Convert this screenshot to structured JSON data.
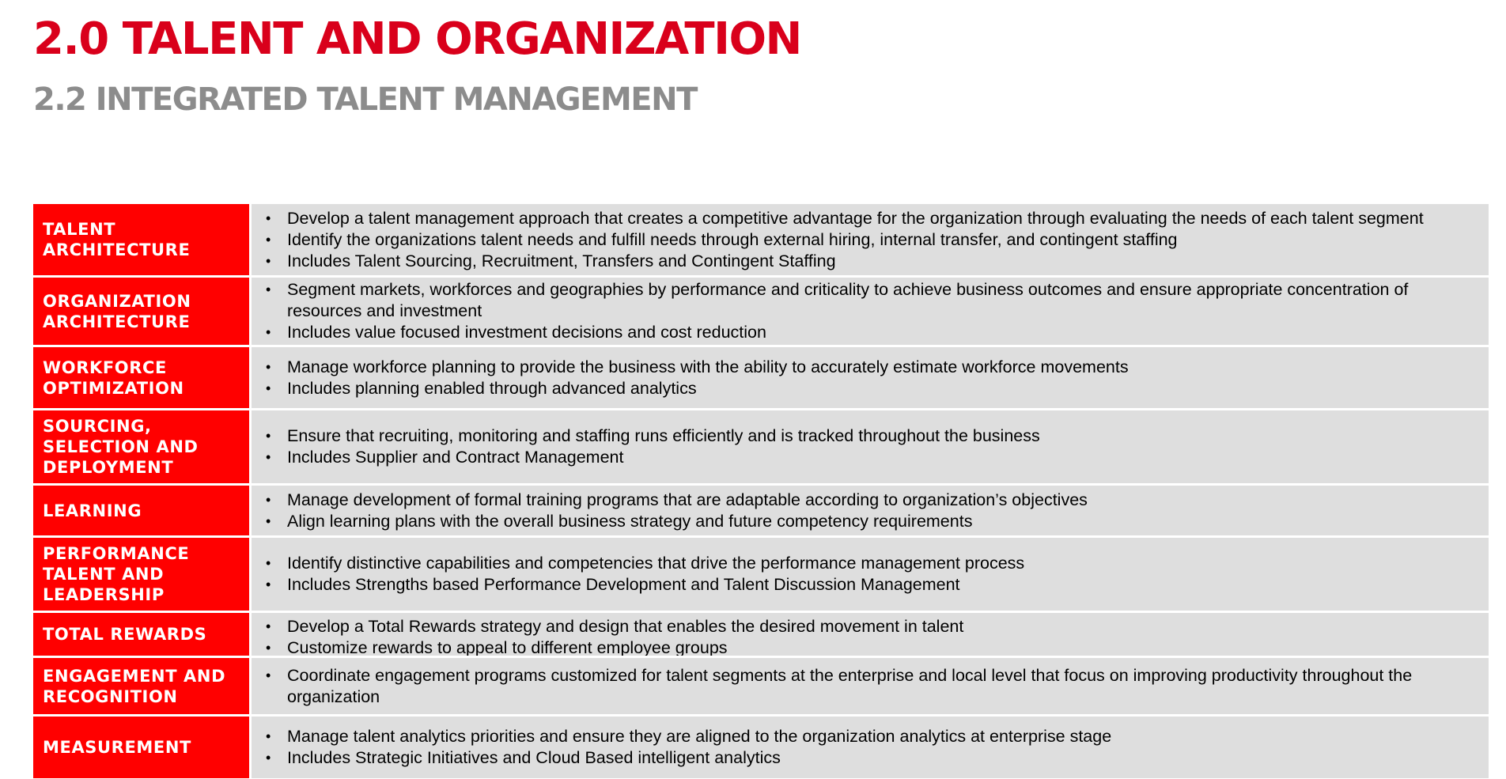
{
  "header": {
    "title": "2.0 TALENT AND ORGANIZATION",
    "subtitle": "2.2 INTEGRATED TALENT MANAGEMENT"
  },
  "table": {
    "bullet_glyph": "•",
    "label_color": "#ff0000",
    "content_color": "#dedede",
    "rows": [
      {
        "label": "TALENT ARCHITECTURE",
        "bullets": [
          "Develop a talent management approach that creates a competitive advantage for the organization through evaluating the needs of each talent segment",
          "Identify the organizations talent needs and fulfill needs through external hiring, internal transfer, and contingent staffing",
          "Includes Talent Sourcing, Recruitment, Transfers and Contingent Staffing"
        ]
      },
      {
        "label": "ORGANIZATION ARCHITECTURE",
        "bullets": [
          "Segment markets, workforces and geographies by performance and criticality to achieve business outcomes and ensure appropriate concentration of resources and investment",
          "Includes value focused investment decisions and cost reduction"
        ]
      },
      {
        "label": "WORKFORCE OPTIMIZATION",
        "bullets": [
          "Manage workforce planning to provide the business with the ability to accurately estimate workforce movements",
          "Includes planning enabled through advanced analytics"
        ]
      },
      {
        "label": "SOURCING, SELECTION AND DEPLOYMENT",
        "bullets": [
          "Ensure that recruiting, monitoring and staffing runs efficiently and is tracked throughout the business",
          "Includes Supplier and Contract Management"
        ]
      },
      {
        "label": "LEARNING",
        "bullets": [
          "Manage development of formal training programs that are adaptable according to organization’s objectives",
          "Align learning plans with the overall business strategy and future competency requirements"
        ]
      },
      {
        "label": "PERFORMANCE TALENT AND LEADERSHIP",
        "bullets": [
          "Identify distinctive capabilities and competencies that drive the performance management process",
          "Includes Strengths based Performance Development and Talent Discussion Management"
        ]
      },
      {
        "label": "TOTAL REWARDS",
        "bullets": [
          "Develop a Total Rewards strategy and design that enables the desired movement in talent",
          "Customize rewards to appeal to different employee groups"
        ]
      },
      {
        "label": "ENGAGEMENT AND RECOGNITION",
        "bullets": [
          "Coordinate engagement programs customized for talent segments at the enterprise and local level that focus on improving productivity throughout the organization"
        ]
      },
      {
        "label": "MEASUREMENT",
        "bullets": [
          "Manage talent analytics priorities and ensure they are aligned to the organization analytics at enterprise stage",
          "Includes Strategic Initiatives and Cloud Based intelligent analytics"
        ]
      }
    ]
  }
}
